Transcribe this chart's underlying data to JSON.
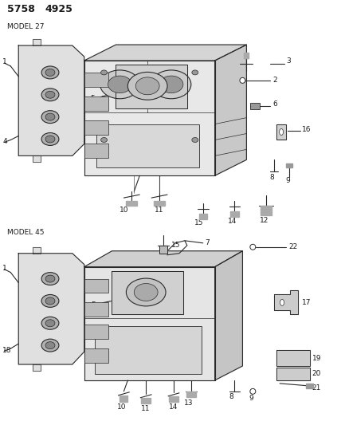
{
  "title": "5758  4925",
  "model1": "MODEL 27",
  "model2": "MODEL 45",
  "bg_color": "#ffffff",
  "line_color": "#2a2a2a",
  "text_color": "#1a1a1a",
  "fig_width": 4.28,
  "fig_height": 5.33,
  "dpi": 100
}
